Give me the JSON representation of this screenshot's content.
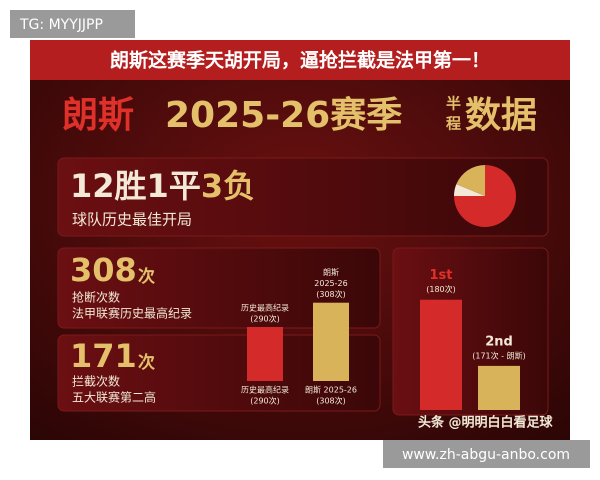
{
  "watermark": "TG: MYYJJPP",
  "banner": "朗斯这赛季天胡开局，逼抢拦截是法甲第一！",
  "title": {
    "team": "朗斯",
    "season": "2025-26赛季",
    "half": [
      "半",
      "程"
    ],
    "suffix": "数据"
  },
  "record": {
    "wins": "12胜",
    "draws": "1平",
    "losses": "3负",
    "note": "球队历史最佳开局"
  },
  "tackles": {
    "number": "308",
    "unit": "次",
    "label": "抢断次数",
    "note": "法甲联赛历史最高纪录"
  },
  "interceptions": {
    "number": "171",
    "unit": "次",
    "label": "拦截次数",
    "note": "五大联赛第二高"
  },
  "chart_data": [
    {
      "type": "pie",
      "values": [
        12,
        1,
        3
      ],
      "colors": [
        "#d42a2a",
        "#f3e9d6",
        "#d9b35a"
      ]
    },
    {
      "type": "bar",
      "categories": [
        [
          "历史最高纪录",
          "(290次)"
        ],
        [
          "朗斯 2025-26",
          "(308次)"
        ]
      ],
      "annotations": [
        [
          "历史最高纪录",
          "(290次)"
        ],
        [
          "朗斯",
          "2025-26",
          "(308次)"
        ]
      ],
      "values": [
        290,
        308
      ],
      "colors": [
        "#d42a2a",
        "#d9b35a"
      ],
      "ylim": [
        250,
        310
      ]
    },
    {
      "type": "bar",
      "categories": [
        "1st",
        "2nd"
      ],
      "value_labels": [
        "(180次)",
        "(171次 - 朗斯)"
      ],
      "values": [
        180,
        171
      ],
      "colors": [
        "#d42a2a",
        "#d9b35a"
      ],
      "ylim": [
        165,
        182
      ]
    }
  ],
  "footer": "头条 @明明白白看足球",
  "url": "www.zh-abgu-anbo.com"
}
